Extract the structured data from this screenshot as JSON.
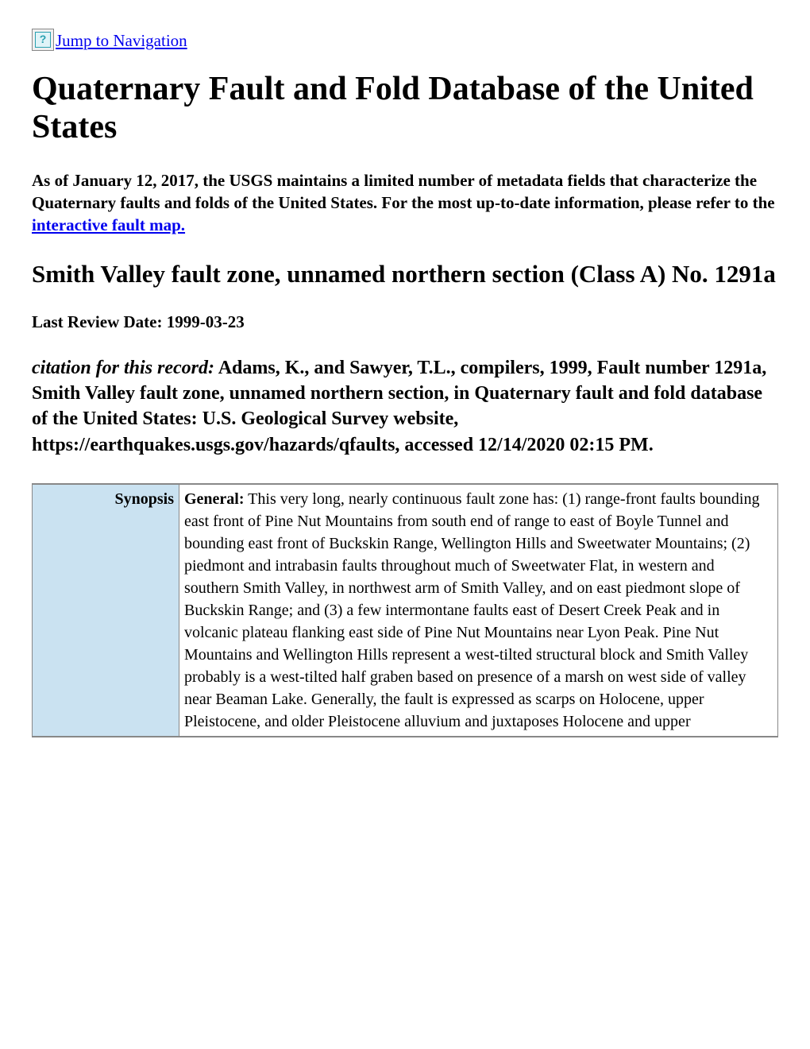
{
  "nav": {
    "jump_link": " Jump to Navigation",
    "missing_img_glyph": "?"
  },
  "title": "Quaternary Fault and Fold Database of the United States",
  "notice": {
    "text_before": "As of January 12, 2017, the USGS maintains a limited number of metadata fields that characterize the Quaternary faults and folds of the United States. For the most up-to-date information, please refer to the ",
    "link_text": "interactive fault map."
  },
  "record_heading": "Smith Valley fault zone, unnamed northern section (Class A) No. 1291a",
  "review_date": "Last Review Date: 1999-03-23",
  "citation": {
    "label": "citation for this record:",
    "text": " Adams, K., and Sawyer, T.L., compilers, 1999, Fault number 1291a, Smith Valley fault zone, unnamed northern section, in Quaternary fault and fold database of the United States: U.S. Geological Survey website, https://earthquakes.usgs.gov/hazards/qfaults, accessed 12/14/2020 02:15 PM."
  },
  "table": {
    "label_col_bg": "#cae2f1",
    "border_color": "#888888",
    "rows": [
      {
        "label": "Synopsis",
        "value_label": "General:",
        "value_text": " This very long, nearly continuous fault zone has: (1) range-front faults bounding east front of Pine Nut Mountains from south end of range to east of Boyle Tunnel and bounding east front of Buckskin Range, Wellington Hills and Sweetwater Mountains; (2) piedmont and intrabasin faults throughout much of Sweetwater Flat, in western and southern Smith Valley, in northwest arm of Smith Valley, and on east piedmont slope of Buckskin Range; and (3) a few intermontane faults east of Desert Creek Peak and in volcanic plateau flanking east side of Pine Nut Mountains near Lyon Peak. Pine Nut Mountains and Wellington Hills represent a west-tilted structural block and Smith Valley probably is a west-tilted half graben based on presence of a marsh on west side of valley near Beaman Lake. Generally, the fault is expressed as scarps on Holocene, upper Pleistocene, and older Pleistocene alluvium and juxtaposes Holocene and upper"
      }
    ]
  }
}
